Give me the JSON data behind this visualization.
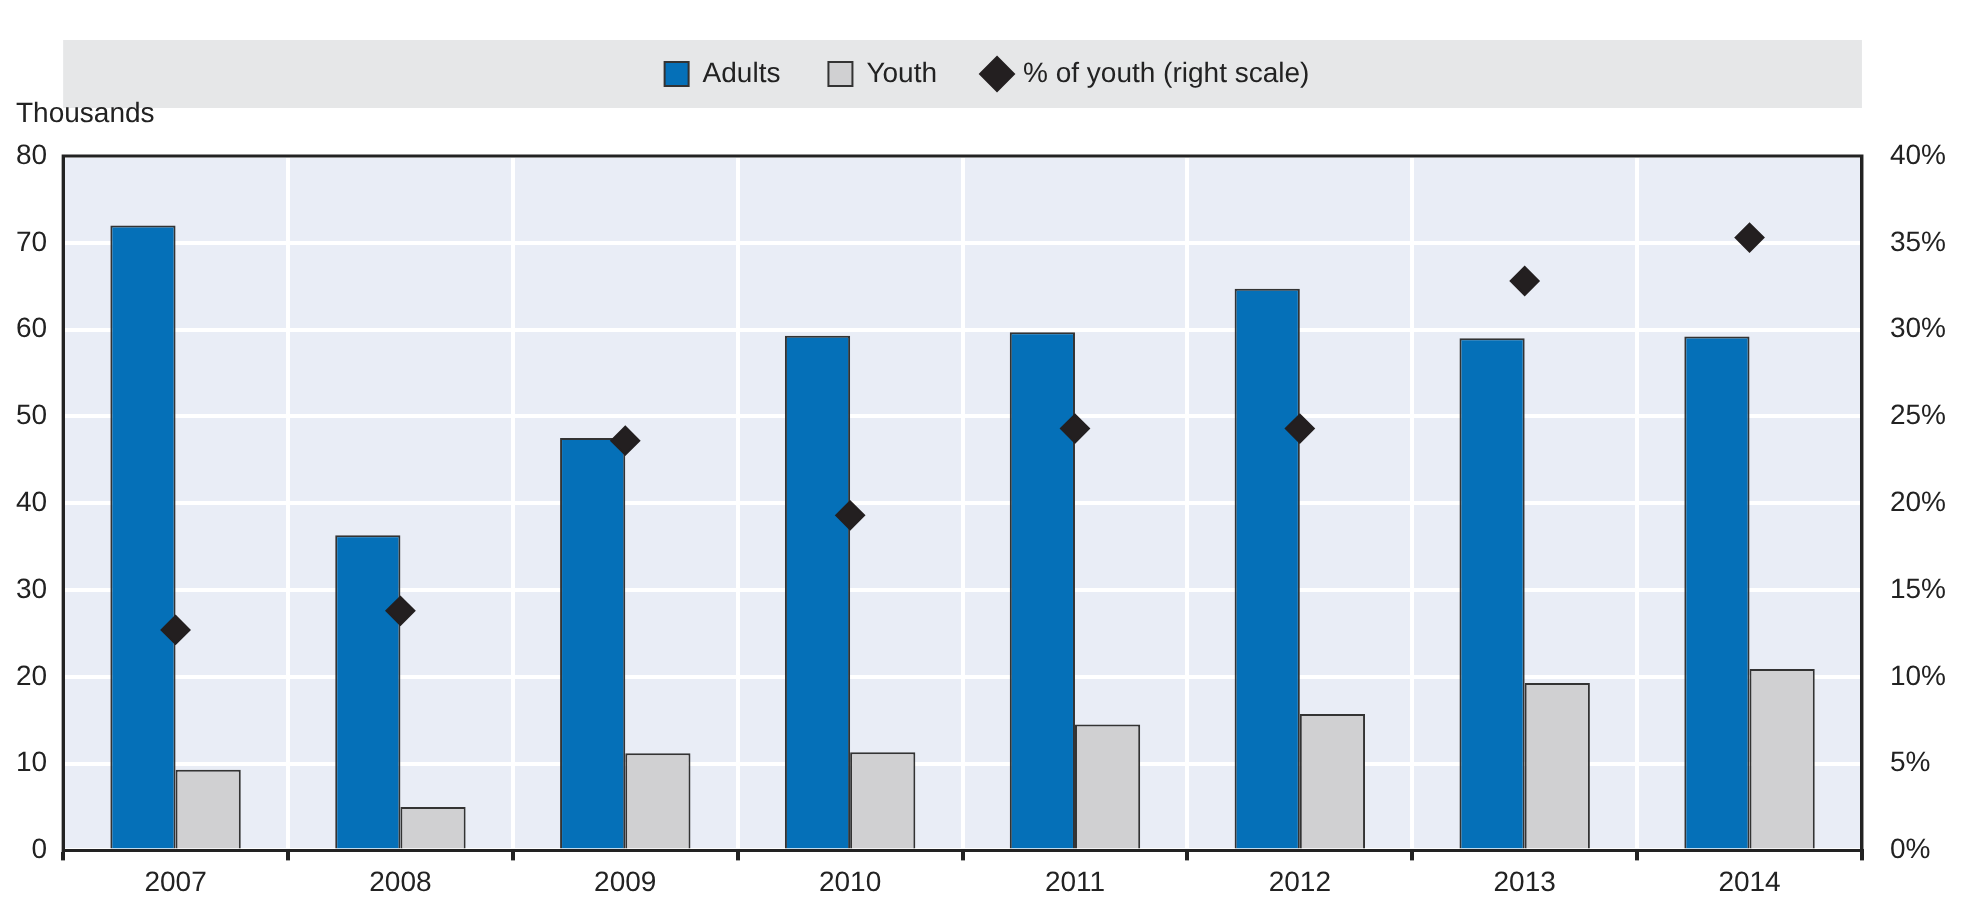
{
  "chart_data": {
    "type": "bar",
    "ylabel": "Thousands",
    "categories": [
      "2007",
      "2008",
      "2009",
      "2010",
      "2011",
      "2012",
      "2013",
      "2014"
    ],
    "series": [
      {
        "name": "Adults",
        "color": "#0570b8",
        "values": [
          72,
          36.3,
          47.5,
          59.3,
          59.7,
          64.7,
          59.0,
          59.2
        ]
      },
      {
        "name": "Youth",
        "color": "#d0d0d2",
        "values": [
          9.3,
          5.0,
          11.2,
          11.3,
          14.5,
          15.7,
          19.3,
          20.9
        ]
      },
      {
        "name": "% of youth (right scale)",
        "type": "scatter",
        "axis": "y2",
        "color": "#231f20",
        "values": [
          12.7,
          13.8,
          23.6,
          19.3,
          24.3,
          24.3,
          32.8,
          35.3
        ]
      }
    ],
    "ylim": [
      0,
      80
    ],
    "yticks": [
      0,
      10,
      20,
      30,
      40,
      50,
      60,
      70,
      80
    ],
    "y2lim": [
      0,
      40
    ],
    "y2ticks": [
      {
        "value": 0,
        "label": "0%"
      },
      {
        "value": 5,
        "label": "5%"
      },
      {
        "value": 10,
        "label": "10%"
      },
      {
        "value": 15,
        "label": "15%"
      },
      {
        "value": 20,
        "label": "20%"
      },
      {
        "value": 25,
        "label": "25%"
      },
      {
        "value": 30,
        "label": "30%"
      },
      {
        "value": 35,
        "label": "35%"
      },
      {
        "value": 40,
        "label": "40%"
      }
    ],
    "grid": true,
    "legend": "top",
    "marker": "diamond"
  }
}
